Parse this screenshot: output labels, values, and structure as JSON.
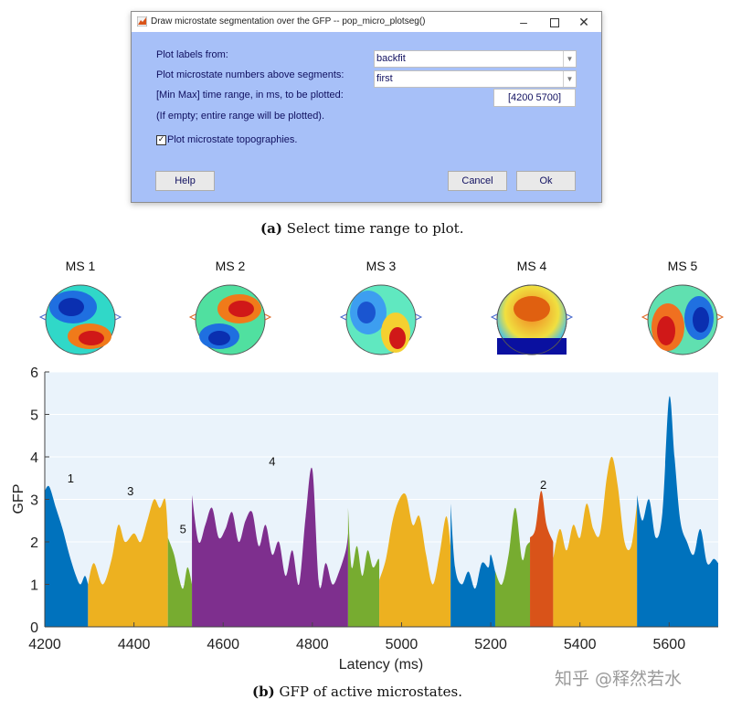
{
  "dialog": {
    "title": "Draw microstate segmentation over the GFP -- pop_micro_plotseg()",
    "minimize_icon": "minimize-icon",
    "maximize_icon": "maximize-icon",
    "close_icon": "close-icon",
    "plot_labels_label": "Plot labels from:",
    "plot_labels_value": "backfit",
    "plot_numbers_label": "Plot microstate numbers above segments:",
    "plot_numbers_value": "first",
    "range_label": "[Min Max] time range, in ms, to be plotted:",
    "range_value": "[4200 5700]",
    "range_note": "(If empty; entire range will be plotted).",
    "topo_checkbox_label": "Plot microstate topographies.",
    "topo_checked": true,
    "help_label": "Help",
    "cancel_label": "Cancel",
    "ok_label": "Ok"
  },
  "captions": {
    "a_tag": "(a)",
    "a_text": " Select time range to plot.",
    "b_tag": "(b)",
    "b_text": " GFP of active microstates."
  },
  "watermark": "知乎 @释然若水",
  "chart_data": {
    "type": "area",
    "title": "",
    "xlabel": "Latency (ms)",
    "ylabel": "GFP",
    "xlim": [
      4200,
      5710
    ],
    "ylim": [
      0,
      6
    ],
    "xticks": [
      4200,
      4400,
      4600,
      4800,
      5000,
      5200,
      5400,
      5600
    ],
    "yticks": [
      0,
      1,
      2,
      3,
      4,
      5,
      6
    ],
    "topographies": [
      "MS 1",
      "MS 2",
      "MS 3",
      "MS 4",
      "MS 5"
    ],
    "microstate_colors": {
      "1": "#0072bd",
      "2": "#d95319",
      "3": "#edb120",
      "4": "#7e2f8e",
      "5": "#77ac30"
    },
    "segment_labels": [
      {
        "label": "1",
        "x": 4258,
        "y": 3.4
      },
      {
        "label": "3",
        "x": 4392,
        "y": 3.1
      },
      {
        "label": "5",
        "x": 4510,
        "y": 2.2
      },
      {
        "label": "4",
        "x": 4710,
        "y": 3.8
      },
      {
        "label": "2",
        "x": 5318,
        "y": 3.25
      }
    ],
    "segments": [
      {
        "ms": 1,
        "x": [
          4200,
          4210,
          4225,
          4240,
          4255,
          4270,
          4280,
          4290,
          4297
        ],
        "y": [
          3.2,
          3.3,
          2.8,
          2.3,
          1.7,
          1.2,
          1.0,
          1.2,
          1.0
        ]
      },
      {
        "ms": 3,
        "x": [
          4297,
          4310,
          4330,
          4350,
          4365,
          4380,
          4400,
          4415,
          4430,
          4445,
          4458,
          4470,
          4476
        ],
        "y": [
          1.0,
          1.5,
          1.0,
          1.6,
          2.4,
          2.0,
          2.2,
          2.0,
          2.5,
          3.0,
          2.8,
          3.0,
          2.2
        ]
      },
      {
        "ms": 5,
        "x": [
          4476,
          4490,
          4500,
          4510,
          4520,
          4530
        ],
        "y": [
          2.1,
          1.7,
          1.2,
          0.9,
          1.4,
          1.0
        ]
      },
      {
        "ms": 4,
        "x": [
          4530,
          4545,
          4560,
          4575,
          4590,
          4605,
          4620,
          4635,
          4650,
          4665,
          4680,
          4695,
          4710,
          4725,
          4740,
          4755,
          4770,
          4785,
          4800,
          4815,
          4830,
          4845,
          4860,
          4875,
          4880
        ],
        "y": [
          3.1,
          2.0,
          2.4,
          2.8,
          2.1,
          2.3,
          2.7,
          2.0,
          2.5,
          2.7,
          1.9,
          2.4,
          1.7,
          2.0,
          1.2,
          1.8,
          1.0,
          2.6,
          3.7,
          1.0,
          1.5,
          1.0,
          1.3,
          1.8,
          2.2
        ]
      },
      {
        "ms": 5,
        "x": [
          4880,
          4888,
          4900,
          4912,
          4924,
          4936,
          4948,
          4950
        ],
        "y": [
          2.8,
          1.4,
          1.9,
          1.2,
          1.8,
          1.4,
          1.6,
          1.5
        ]
      },
      {
        "ms": 3,
        "x": [
          4950,
          4965,
          4980,
          4995,
          5010,
          5025,
          5040,
          5055,
          5070,
          5085,
          5100,
          5110
        ],
        "y": [
          1.1,
          1.6,
          2.5,
          3.0,
          3.1,
          2.4,
          2.6,
          1.7,
          1.0,
          1.7,
          2.6,
          1.9
        ]
      },
      {
        "ms": 1,
        "x": [
          5110,
          5120,
          5135,
          5150,
          5165,
          5180,
          5195,
          5200,
          5210
        ],
        "y": [
          2.9,
          1.4,
          1.0,
          1.3,
          0.9,
          1.5,
          1.4,
          1.7,
          1.3
        ]
      },
      {
        "ms": 5,
        "x": [
          5210,
          5225,
          5240,
          5255,
          5270,
          5280,
          5288
        ],
        "y": [
          1.3,
          1.0,
          1.7,
          2.8,
          1.6,
          1.9,
          2.0
        ]
      },
      {
        "ms": 2,
        "x": [
          5288,
          5300,
          5313,
          5325,
          5340
        ],
        "y": [
          2.1,
          2.3,
          3.2,
          2.4,
          2.0
        ]
      },
      {
        "ms": 3,
        "x": [
          5340,
          5355,
          5370,
          5385,
          5400,
          5415,
          5430,
          5445,
          5460,
          5472,
          5485,
          5500,
          5515,
          5528
        ],
        "y": [
          1.6,
          2.3,
          1.8,
          2.4,
          2.1,
          2.9,
          2.3,
          2.2,
          3.5,
          4.0,
          3.3,
          2.0,
          1.9,
          2.9
        ]
      },
      {
        "ms": 1,
        "x": [
          5528,
          5540,
          5555,
          5570,
          5585,
          5600,
          5612,
          5625,
          5640,
          5655,
          5670,
          5685,
          5700,
          5710
        ],
        "y": [
          3.1,
          2.5,
          3.0,
          2.1,
          2.7,
          5.4,
          4.0,
          2.5,
          2.0,
          1.7,
          2.3,
          1.5,
          1.6,
          1.5
        ]
      }
    ]
  }
}
